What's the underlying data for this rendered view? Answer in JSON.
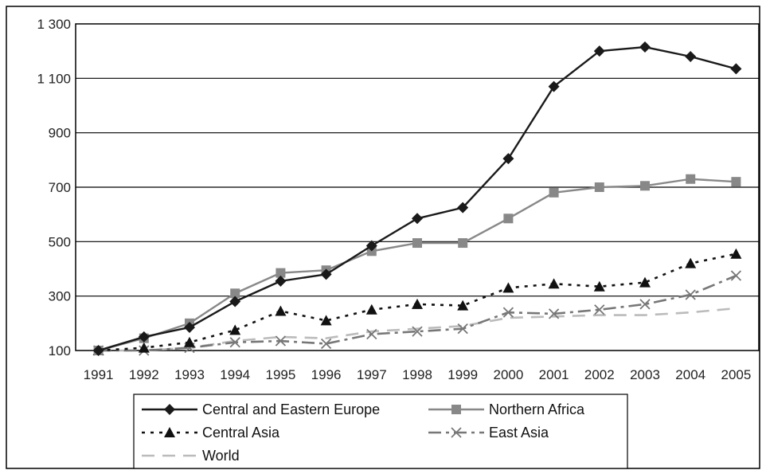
{
  "chart_data": {
    "type": "line",
    "title": "",
    "xlabel": "",
    "ylabel": "",
    "x": [
      "1991",
      "1992",
      "1993",
      "1994",
      "1995",
      "1996",
      "1997",
      "1998",
      "1999",
      "2000",
      "2001",
      "2002",
      "2003",
      "2004",
      "2005"
    ],
    "ylim": [
      100,
      1300
    ],
    "yticks": [
      100,
      300,
      500,
      700,
      900,
      1100,
      1300
    ],
    "ytick_labels": [
      "100",
      "300",
      "500",
      "700",
      "900",
      "1 100",
      "1 300"
    ],
    "grid": "horizontal",
    "legend_position": "bottom",
    "series": [
      {
        "name": "Central and Eastern Europe",
        "color": "#1a1a1a",
        "dash": "solid",
        "marker": "diamond",
        "values": [
          100,
          150,
          185,
          280,
          355,
          380,
          485,
          585,
          625,
          805,
          1070,
          1200,
          1215,
          1180,
          1135
        ]
      },
      {
        "name": "Northern Africa",
        "color": "#888888",
        "dash": "solid",
        "marker": "square",
        "values": [
          100,
          145,
          200,
          310,
          385,
          395,
          465,
          495,
          495,
          585,
          680,
          700,
          705,
          730,
          720
        ]
      },
      {
        "name": "Central Asia",
        "color": "#111111",
        "dash": "dotted",
        "marker": "triangle",
        "values": [
          100,
          110,
          130,
          175,
          245,
          210,
          250,
          270,
          265,
          330,
          345,
          335,
          350,
          420,
          455
        ]
      },
      {
        "name": "East Asia",
        "color": "#777777",
        "dash": "dashdot",
        "marker": "x",
        "values": [
          100,
          100,
          110,
          130,
          135,
          125,
          160,
          170,
          180,
          240,
          235,
          250,
          270,
          305,
          375
        ]
      },
      {
        "name": "World",
        "color": "#bbbbbb",
        "dash": "dashed",
        "marker": "none",
        "values": [
          100,
          100,
          110,
          135,
          150,
          145,
          170,
          180,
          190,
          220,
          225,
          230,
          230,
          240,
          255
        ]
      }
    ]
  }
}
